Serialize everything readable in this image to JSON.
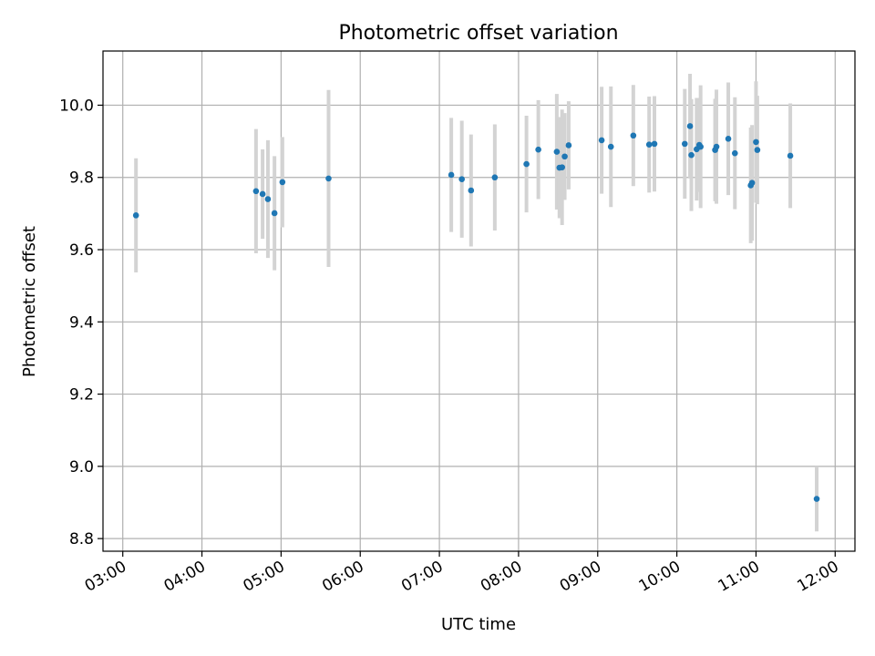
{
  "chart_data": {
    "type": "scatter",
    "title": "Photometric offset variation",
    "xlabel": "UTC time",
    "ylabel": "Photometric offset",
    "x_unit": "hours UTC",
    "xlim": [
      "02:45",
      "12:15"
    ],
    "ylim": [
      8.765,
      10.15
    ],
    "grid": true,
    "x_ticks": [
      {
        "value": "03:00",
        "label": "03:00"
      },
      {
        "value": "04:00",
        "label": "04:00"
      },
      {
        "value": "05:00",
        "label": "05:00"
      },
      {
        "value": "06:00",
        "label": "06:00"
      },
      {
        "value": "07:00",
        "label": "07:00"
      },
      {
        "value": "08:00",
        "label": "08:00"
      },
      {
        "value": "09:00",
        "label": "09:00"
      },
      {
        "value": "10:00",
        "label": "10:00"
      },
      {
        "value": "11:00",
        "label": "11:00"
      },
      {
        "value": "12:00",
        "label": "12:00"
      }
    ],
    "y_ticks": [
      {
        "value": 8.8,
        "label": "8.8"
      },
      {
        "value": 9.0,
        "label": "9.0"
      },
      {
        "value": 9.2,
        "label": "9.2"
      },
      {
        "value": 9.4,
        "label": "9.4"
      },
      {
        "value": 9.6,
        "label": "9.6"
      },
      {
        "value": 9.8,
        "label": "9.8"
      },
      {
        "value": 10.0,
        "label": "10.0"
      }
    ],
    "point_color": "#1f77b4",
    "errorbar_color": "#d3d3d3",
    "points": [
      {
        "x": "03:10",
        "y": 9.695,
        "err": 0.158
      },
      {
        "x": "04:41",
        "y": 9.762,
        "err": 0.172
      },
      {
        "x": "04:46",
        "y": 9.754,
        "err": 0.124
      },
      {
        "x": "04:50",
        "y": 9.74,
        "err": 0.163
      },
      {
        "x": "04:55",
        "y": 9.701,
        "err": 0.158
      },
      {
        "x": "05:01",
        "y": 9.787,
        "err": 0.125
      },
      {
        "x": "05:36",
        "y": 9.797,
        "err": 0.245
      },
      {
        "x": "07:09",
        "y": 9.807,
        "err": 0.158
      },
      {
        "x": "07:17",
        "y": 9.795,
        "err": 0.162
      },
      {
        "x": "07:24",
        "y": 9.764,
        "err": 0.155
      },
      {
        "x": "07:42",
        "y": 9.8,
        "err": 0.147
      },
      {
        "x": "08:06",
        "y": 9.837,
        "err": 0.134
      },
      {
        "x": "08:15",
        "y": 9.877,
        "err": 0.137
      },
      {
        "x": "08:29",
        "y": 9.871,
        "err": 0.16
      },
      {
        "x": "08:31",
        "y": 9.827,
        "err": 0.14
      },
      {
        "x": "08:33",
        "y": 9.828,
        "err": 0.16
      },
      {
        "x": "08:35",
        "y": 9.858,
        "err": 0.12
      },
      {
        "x": "08:38",
        "y": 9.889,
        "err": 0.122
      },
      {
        "x": "09:03",
        "y": 9.903,
        "err": 0.148
      },
      {
        "x": "09:10",
        "y": 9.885,
        "err": 0.167
      },
      {
        "x": "09:27",
        "y": 9.916,
        "err": 0.14
      },
      {
        "x": "09:39",
        "y": 9.891,
        "err": 0.133
      },
      {
        "x": "09:43",
        "y": 9.893,
        "err": 0.132
      },
      {
        "x": "10:06",
        "y": 9.893,
        "err": 0.152
      },
      {
        "x": "10:10",
        "y": 9.942,
        "err": 0.145
      },
      {
        "x": "10:11",
        "y": 9.862,
        "err": 0.155
      },
      {
        "x": "10:15",
        "y": 9.878,
        "err": 0.142
      },
      {
        "x": "10:17",
        "y": 9.89,
        "err": 0.13
      },
      {
        "x": "10:18",
        "y": 9.885,
        "err": 0.17
      },
      {
        "x": "10:29",
        "y": 9.876,
        "err": 0.142
      },
      {
        "x": "10:30",
        "y": 9.885,
        "err": 0.158
      },
      {
        "x": "10:39",
        "y": 9.907,
        "err": 0.156
      },
      {
        "x": "10:44",
        "y": 9.867,
        "err": 0.155
      },
      {
        "x": "10:56",
        "y": 9.778,
        "err": 0.16
      },
      {
        "x": "10:57",
        "y": 9.785,
        "err": 0.16
      },
      {
        "x": "11:00",
        "y": 9.898,
        "err": 0.168
      },
      {
        "x": "11:01",
        "y": 9.876,
        "err": 0.15
      },
      {
        "x": "11:26",
        "y": 9.86,
        "err": 0.145
      },
      {
        "x": "11:46",
        "y": 8.91,
        "err": 0.09
      }
    ]
  }
}
